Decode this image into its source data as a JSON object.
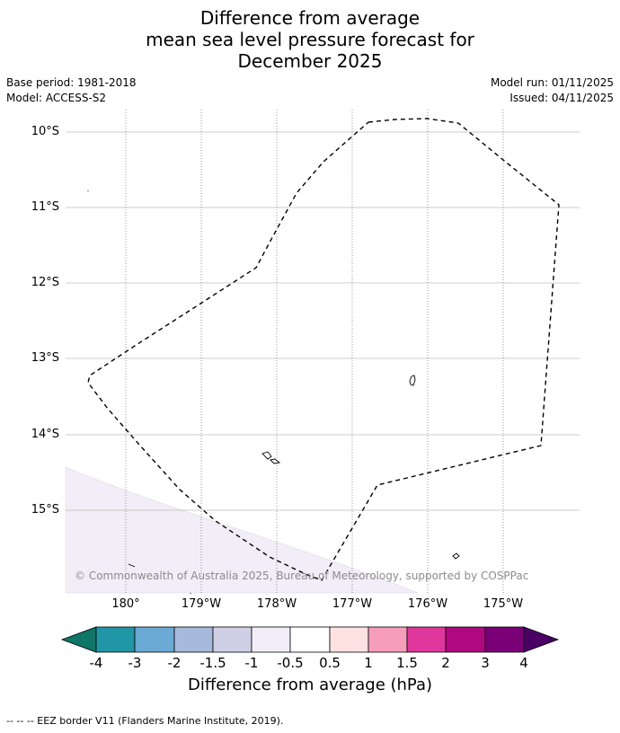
{
  "title": {
    "line1": "Difference from average",
    "line2": "mean sea level pressure forecast for",
    "line3": "December 2025"
  },
  "meta": {
    "base_period": "Base period: 1981-2018",
    "model": "Model: ACCESS-S2",
    "model_run": "Model run: 01/11/2025",
    "issued": "Issued: 04/11/2025"
  },
  "map": {
    "lat_labels": [
      "10°S",
      "11°S",
      "12°S",
      "13°S",
      "14°S",
      "15°S"
    ],
    "lon_labels": [
      "180°",
      "179°W",
      "178°W",
      "177°W",
      "176°W",
      "175°W"
    ],
    "copyright": "© Commonwealth of Australia 2025, Bureau of Meteorology, supported by COSPPac",
    "shaded_category": "-0.5 to -1"
  },
  "colorbar": {
    "title": "Difference from average (hPa)",
    "tick_labels": [
      "-4",
      "-3",
      "-2",
      "-1.5",
      "-1",
      "-0.5",
      "0.5",
      "1",
      "1.5",
      "2",
      "3",
      "4"
    ],
    "colors": [
      "#0f7566",
      "#2196a6",
      "#6aaad4",
      "#a7b9dc",
      "#cfd0e6",
      "#f2edf6",
      "#ffffff",
      "#fde1e3",
      "#f79dbc",
      "#e0379c",
      "#b0087f",
      "#7b0078",
      "#4b0066"
    ]
  },
  "footer": {
    "legend": "--  --  -- EEZ border V11 (Flanders Marine Institute, 2019)."
  }
}
